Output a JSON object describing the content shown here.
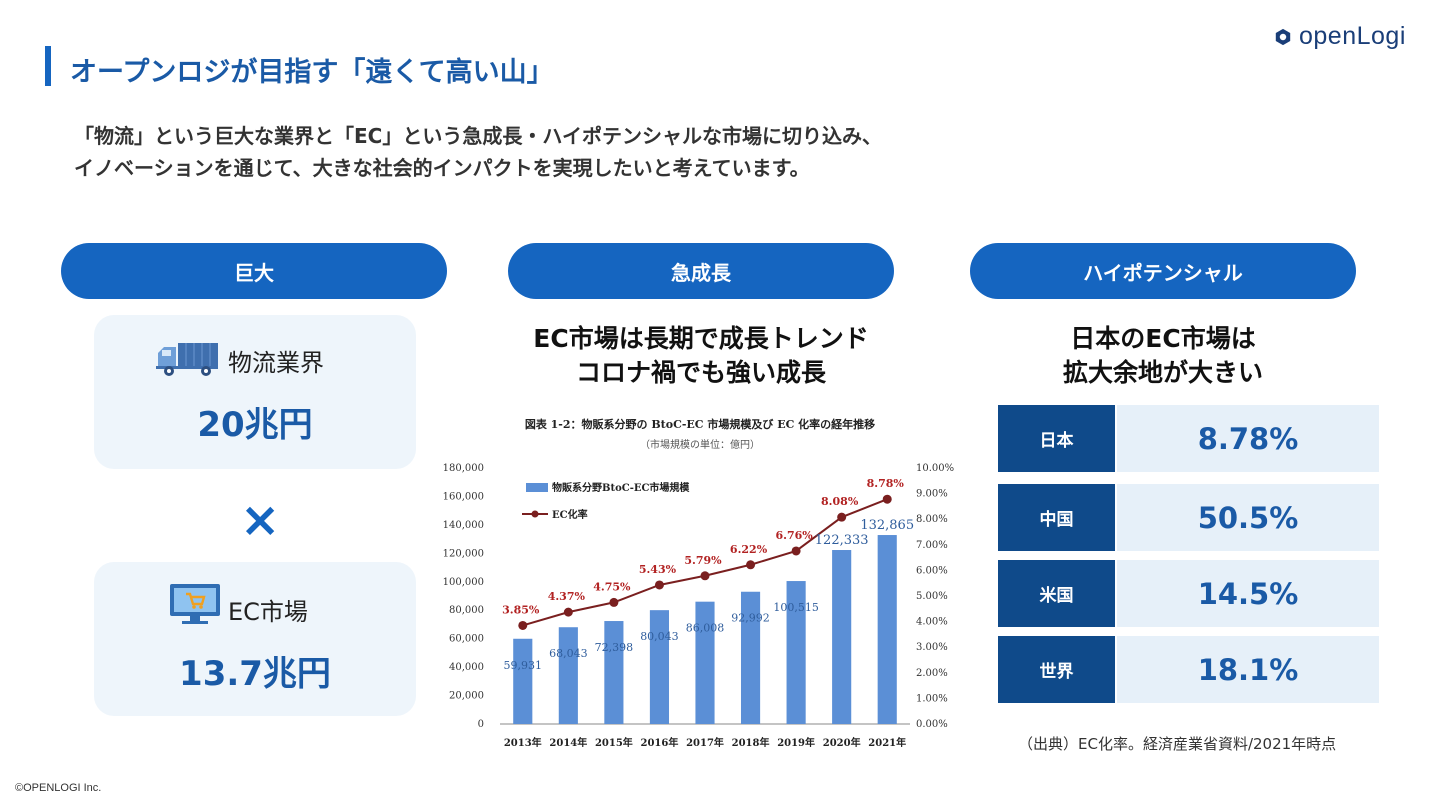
{
  "header": {
    "title": "オープンロジが目指す「遠くて高い山」",
    "logo_text": "openLogi",
    "lead_line1": "「物流」という巨大な業界と「EC」という急成長・ハイポテンシャルな市場に切り込み、",
    "lead_line2": "イノベーションを通じて、大きな社会的インパクトを実現したいと考えています。"
  },
  "columns": {
    "huge": {
      "pill": "巨大",
      "card1_label": "物流業界",
      "card1_value": "20兆円",
      "times": "×",
      "card2_label": "EC市場",
      "card2_value": "13.7兆円"
    },
    "growth": {
      "pill": "急成長",
      "heading_line1": "EC市場は長期で成長トレンド",
      "heading_line2": "コロナ禍でも強い成長"
    },
    "potential": {
      "pill": "ハイポテンシャル",
      "heading_line1": "日本のEC市場は",
      "heading_line2": "拡大余地が大きい",
      "rows": [
        {
          "label": "日本",
          "value": "8.78%"
        },
        {
          "label": "中国",
          "value": "50.5%"
        },
        {
          "label": "米国",
          "value": "14.5%"
        },
        {
          "label": "世界",
          "value": "18.1%"
        }
      ],
      "source": "（出典）EC化率。経済産業省資料/2021年時点"
    }
  },
  "footer": {
    "copyright": "©OPENLOGI Inc."
  },
  "colors": {
    "accent": "#1565c0",
    "dark_blue": "#0f4a8a",
    "light_bg": "#eef5fb",
    "bar": "#5b8fd6",
    "line": "#7a1f1f"
  },
  "icons": [
    "truck-icon",
    "computer-cart-icon",
    "openlogi-logo-icon"
  ],
  "chart_data": {
    "type": "bar",
    "title": "図表 1-2：物販系分野の BtoC-EC 市場規模及び EC 化率の経年推移",
    "subtitle": "（市場規模の単位：億円）",
    "categories": [
      "2013年",
      "2014年",
      "2015年",
      "2016年",
      "2017年",
      "2018年",
      "2019年",
      "2020年",
      "2021年"
    ],
    "series": [
      {
        "name": "物販系分野BtoC-EC市場規模",
        "type": "bar",
        "axis": "left",
        "values": [
          59931,
          68043,
          72398,
          80043,
          86008,
          92992,
          100515,
          122333,
          132865
        ],
        "labels": [
          "59,931",
          "68,043",
          "72,398",
          "80,043",
          "86,008",
          "92,992",
          "100,515",
          "122,333",
          "132,865"
        ]
      },
      {
        "name": "EC化率",
        "type": "line",
        "axis": "right",
        "values": [
          3.85,
          4.37,
          4.75,
          5.43,
          5.79,
          6.22,
          6.76,
          8.08,
          8.78
        ],
        "labels": [
          "3.85%",
          "4.37%",
          "4.75%",
          "5.43%",
          "5.79%",
          "6.22%",
          "6.76%",
          "8.08%",
          "8.78%"
        ]
      }
    ],
    "ylim": [
      0,
      180000
    ],
    "y2lim": [
      0,
      10
    ],
    "yticks": [
      "0",
      "20,000",
      "40,000",
      "60,000",
      "80,000",
      "100,000",
      "120,000",
      "140,000",
      "160,000",
      "180,000"
    ],
    "y2ticks": [
      "0.00%",
      "1.00%",
      "2.00%",
      "3.00%",
      "4.00%",
      "5.00%",
      "6.00%",
      "7.00%",
      "8.00%",
      "9.00%",
      "10.00%"
    ],
    "legend": "top-left",
    "grid": false
  }
}
